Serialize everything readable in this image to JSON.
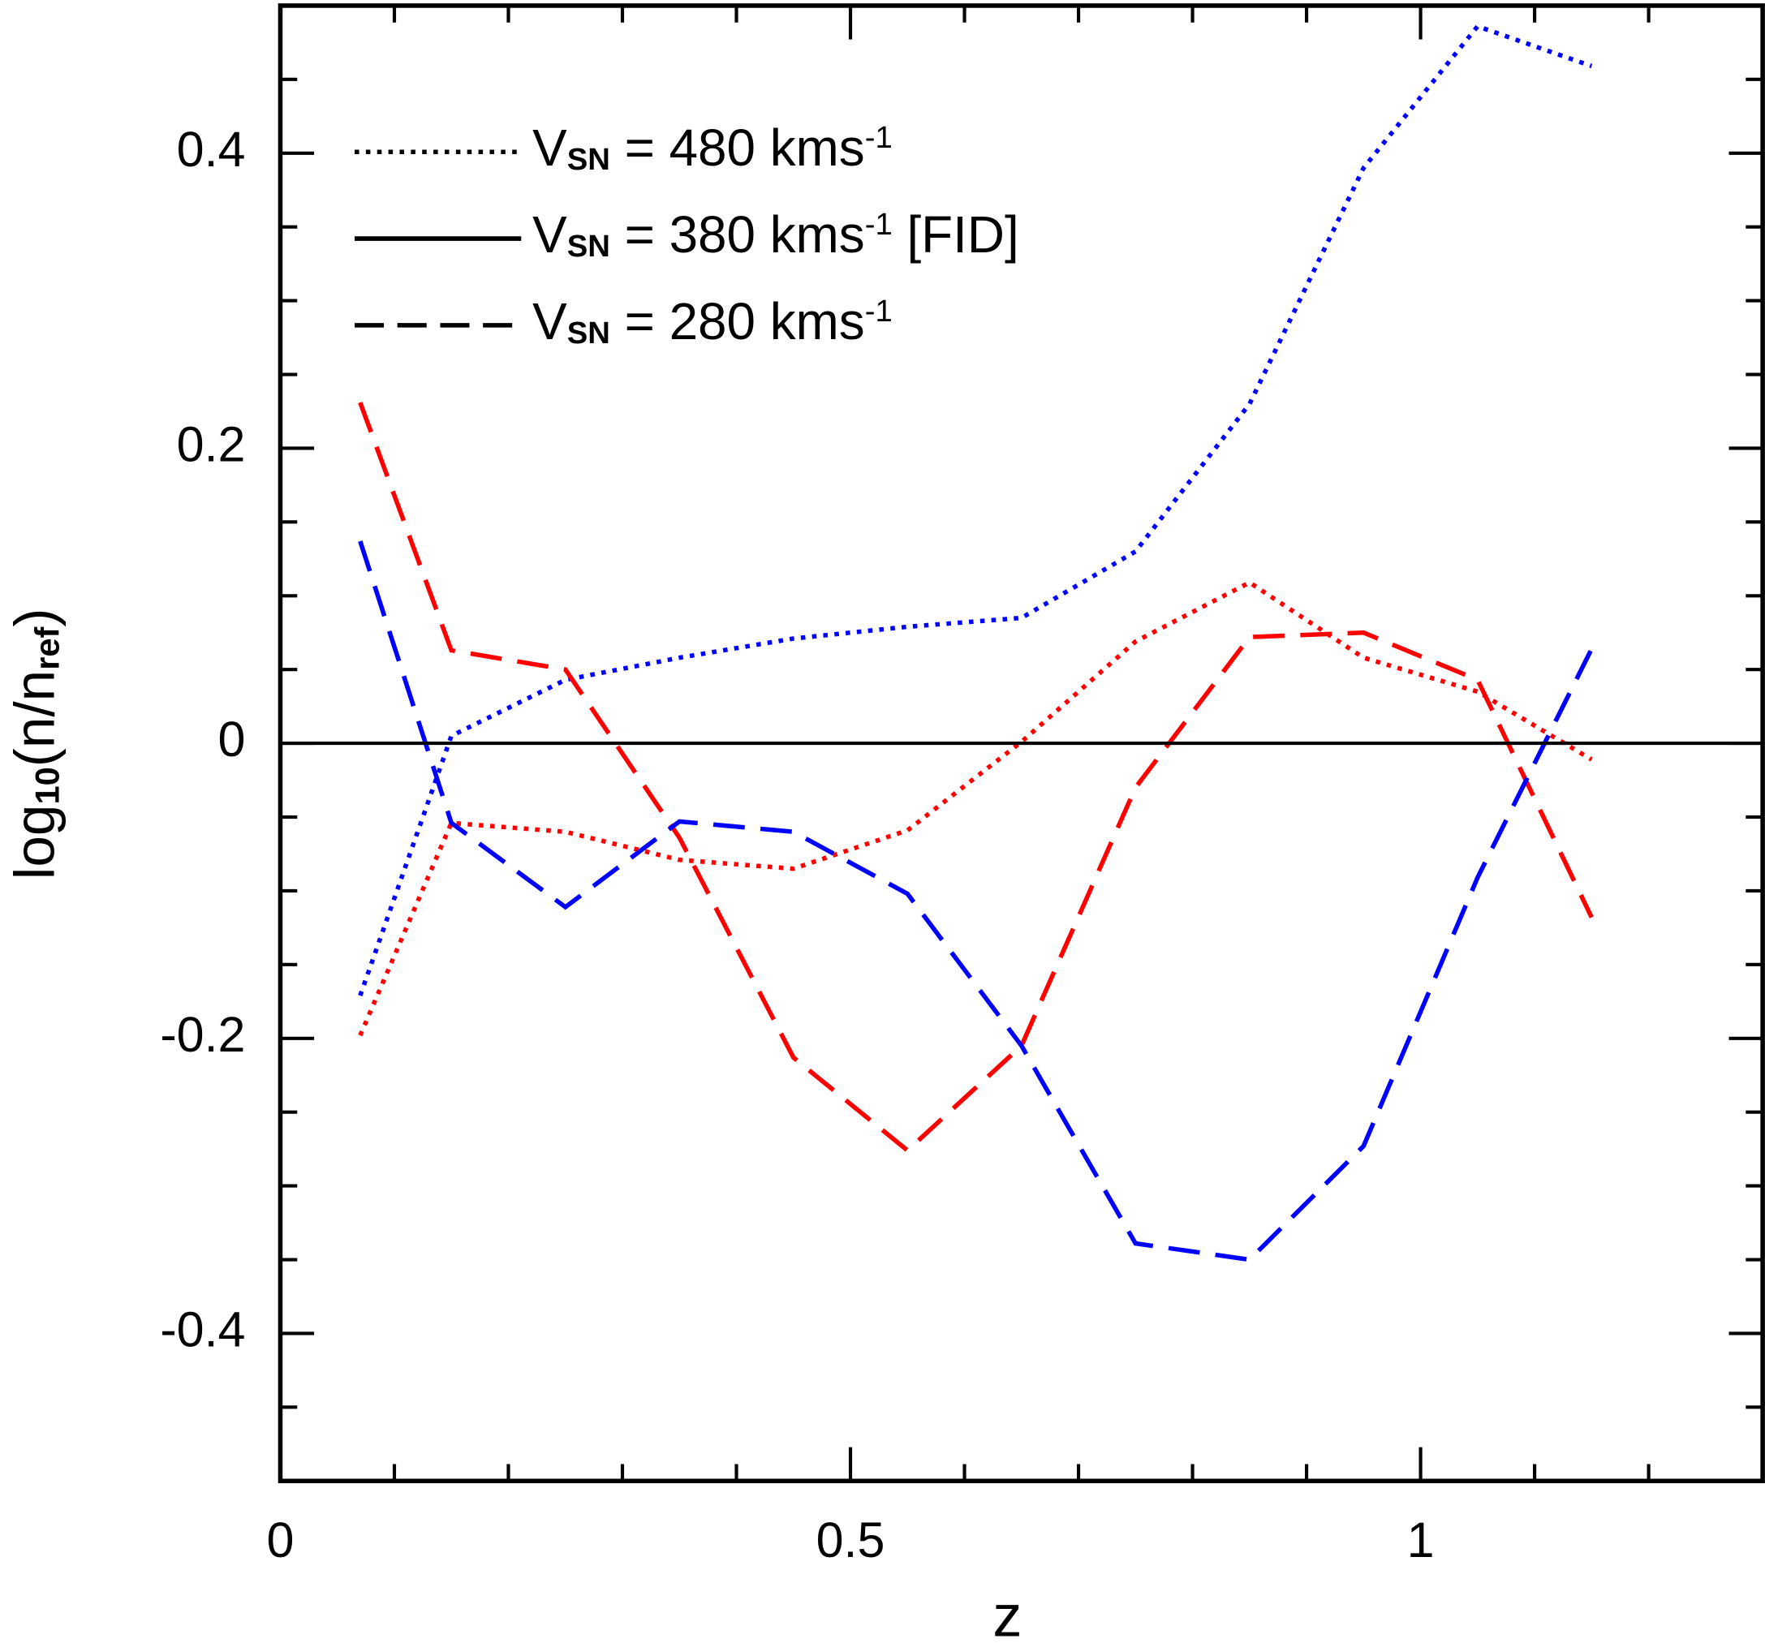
{
  "chart_data": {
    "type": "line",
    "xlabel": "z",
    "ylabel": [
      {
        "text": "log"
      },
      {
        "text": "10",
        "sub": true
      },
      {
        "text": "(n/n"
      },
      {
        "text": "ref",
        "sub": true
      },
      {
        "text": ")"
      }
    ],
    "xlim": [
      0,
      1.3
    ],
    "ylim": [
      -0.5,
      0.5
    ],
    "xticks": [
      0,
      0.5,
      1
    ],
    "yticks": [
      -0.4,
      -0.2,
      0,
      0.2,
      0.4
    ],
    "xminorticks": [
      0.1,
      0.2,
      0.3,
      0.4,
      0.6,
      0.7,
      0.8,
      0.9,
      1.1,
      1.2
    ],
    "yminorticks": [
      -0.45,
      -0.35,
      -0.3,
      -0.25,
      -0.15,
      -0.1,
      -0.05,
      0.05,
      0.1,
      0.15,
      0.25,
      0.3,
      0.35,
      0.45
    ],
    "legend_position": "upper left",
    "legend": [
      {
        "style": "dotted",
        "parts": [
          {
            "text": "V"
          },
          {
            "text": "SN",
            "sub": true
          },
          {
            "text": " = 480 kms"
          },
          {
            "text": "-1",
            "sup": true
          }
        ]
      },
      {
        "style": "solid",
        "parts": [
          {
            "text": "V"
          },
          {
            "text": "SN",
            "sub": true
          },
          {
            "text": " = 380 kms"
          },
          {
            "text": "-1",
            "sup": true
          },
          {
            "text": " [FID]"
          }
        ]
      },
      {
        "style": "dashed",
        "parts": [
          {
            "text": "V"
          },
          {
            "text": "SN",
            "sub": true
          },
          {
            "text": " = 280 kms"
          },
          {
            "text": "-1",
            "sup": true
          }
        ]
      }
    ],
    "series": [
      {
        "color": "#0000ff",
        "style": "dotted",
        "x": [
          0.07,
          0.15,
          0.25,
          0.35,
          0.45,
          0.55,
          0.65,
          0.75,
          0.85,
          0.95,
          1.05,
          1.15
        ],
        "values": [
          -0.171,
          0.005,
          0.043,
          0.058,
          0.071,
          0.079,
          0.085,
          0.13,
          0.23,
          0.39,
          0.486,
          0.459
        ]
      },
      {
        "color": "#ff0000",
        "style": "dotted",
        "x": [
          0.07,
          0.15,
          0.25,
          0.35,
          0.45,
          0.55,
          0.65,
          0.75,
          0.85,
          0.95,
          1.05,
          1.15
        ],
        "values": [
          -0.198,
          -0.054,
          -0.06,
          -0.079,
          -0.085,
          -0.059,
          0.001,
          0.069,
          0.109,
          0.058,
          0.035,
          -0.011
        ]
      },
      {
        "color": "#ff0000",
        "style": "dashed",
        "x": [
          0.07,
          0.15,
          0.25,
          0.35,
          0.45,
          0.55,
          0.65,
          0.75,
          0.85,
          0.95,
          1.05,
          1.15
        ],
        "values": [
          0.231,
          0.063,
          0.05,
          -0.064,
          -0.213,
          -0.276,
          -0.205,
          -0.03,
          0.072,
          0.075,
          0.043,
          -0.118
        ]
      },
      {
        "color": "#0000ff",
        "style": "dashed",
        "x": [
          0.07,
          0.15,
          0.25,
          0.35,
          0.45,
          0.55,
          0.65,
          0.75,
          0.85,
          0.95,
          1.05,
          1.15
        ],
        "values": [
          0.137,
          -0.054,
          -0.111,
          -0.053,
          -0.06,
          -0.102,
          -0.205,
          -0.339,
          -0.35,
          -0.273,
          -0.091,
          0.064
        ]
      },
      {
        "color": "#000000",
        "style": "solid",
        "x": [
          0,
          1.3
        ],
        "values": [
          0,
          0
        ]
      }
    ]
  }
}
